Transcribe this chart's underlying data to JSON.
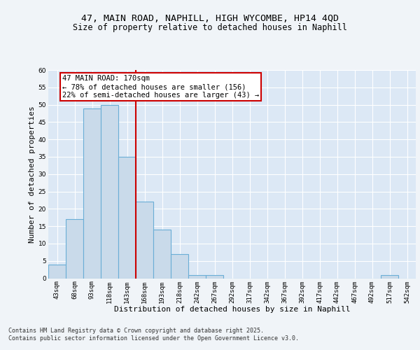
{
  "title_line1": "47, MAIN ROAD, NAPHILL, HIGH WYCOMBE, HP14 4QD",
  "title_line2": "Size of property relative to detached houses in Naphill",
  "xlabel": "Distribution of detached houses by size in Naphill",
  "ylabel": "Number of detached properties",
  "bar_labels": [
    "43sqm",
    "68sqm",
    "93sqm",
    "118sqm",
    "143sqm",
    "168sqm",
    "193sqm",
    "218sqm",
    "242sqm",
    "267sqm",
    "292sqm",
    "317sqm",
    "342sqm",
    "367sqm",
    "392sqm",
    "417sqm",
    "442sqm",
    "467sqm",
    "492sqm",
    "517sqm",
    "542sqm"
  ],
  "bar_values": [
    4,
    17,
    49,
    50,
    35,
    22,
    14,
    7,
    1,
    1,
    0,
    0,
    0,
    0,
    0,
    0,
    0,
    0,
    0,
    1,
    0
  ],
  "bar_color": "#c9daea",
  "bar_edge_color": "#6aaed6",
  "vline_index": 5,
  "vline_color": "#cc0000",
  "annotation_text": "47 MAIN ROAD: 170sqm\n← 78% of detached houses are smaller (156)\n22% of semi-detached houses are larger (43) →",
  "annotation_box_color": "#ffffff",
  "annotation_box_edge_color": "#cc0000",
  "ylim": [
    0,
    60
  ],
  "yticks": [
    0,
    5,
    10,
    15,
    20,
    25,
    30,
    35,
    40,
    45,
    50,
    55,
    60
  ],
  "background_color": "#dce8f5",
  "grid_color": "#ffffff",
  "fig_background_color": "#f0f4f8",
  "footer_text": "Contains HM Land Registry data © Crown copyright and database right 2025.\nContains public sector information licensed under the Open Government Licence v3.0.",
  "title_fontsize": 9.5,
  "subtitle_fontsize": 8.5,
  "axis_label_fontsize": 8,
  "tick_fontsize": 6.5,
  "annotation_fontsize": 7.5
}
